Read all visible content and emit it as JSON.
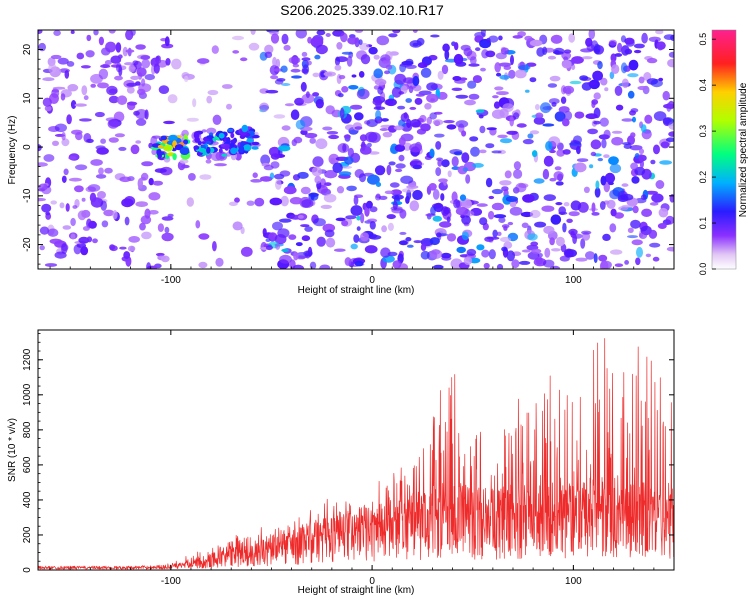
{
  "title": "S206.2025.339.02.10.R17",
  "colors": {
    "snr_line": "#ee2a2a",
    "spectrogram_low": "#e2c8f5",
    "spectrogram_mid": "#5a14ff",
    "spectrogram_high": "#ff1e1e"
  },
  "chart_data": [
    {
      "type": "heatmap",
      "name": "spectrogram",
      "xlabel": "Height of straight line (km)",
      "ylabel": "Frequency (Hz)",
      "xlim": [
        -166,
        150
      ],
      "ylim": [
        -25,
        24
      ],
      "x_ticks": [
        -100,
        0,
        100
      ],
      "x_tick_labels": [
        "-100",
        "0",
        "100"
      ],
      "y_ticks": [
        -20,
        -10,
        0,
        10,
        20
      ],
      "y_tick_labels": [
        "-20",
        "-10",
        "0",
        "10",
        "20"
      ],
      "colorbar": {
        "label": "Normalized spectral amplitude",
        "range": [
          0.0,
          0.52
        ],
        "ticks": [
          0.0,
          0.1,
          0.2,
          0.3,
          0.4,
          0.5
        ],
        "tick_labels": [
          "0.0",
          "0.1",
          "0.2",
          "0.3",
          "0.4",
          "0.5"
        ],
        "colormap": [
          "#ffffff",
          "#d9b3f2",
          "#7a1cff",
          "#1e1eff",
          "#00c8ff",
          "#00ff60",
          "#c8ff00",
          "#ffd000",
          "#ff2020",
          "#ff1e8c"
        ]
      },
      "signal_band": [
        {
          "x": -100,
          "freq_min": -2,
          "freq_max": 2,
          "amplitude": 0.45
        },
        {
          "x": -80,
          "freq_min": -2,
          "freq_max": 3,
          "amplitude": 0.3
        },
        {
          "x": -65,
          "freq_min": -1,
          "freq_max": 4,
          "amplitude": 0.25
        }
      ]
    },
    {
      "type": "line",
      "name": "snr",
      "xlabel": "Height of straight line (km)",
      "ylabel": "SNR (10 * v/v)",
      "xlim": [
        -166,
        150
      ],
      "ylim": [
        0,
        1370
      ],
      "x_ticks": [
        -100,
        0,
        100
      ],
      "x_tick_labels": [
        "-100",
        "0",
        "100"
      ],
      "y_ticks": [
        0,
        200,
        400,
        600,
        800,
        1000,
        1200
      ],
      "y_tick_labels": [
        "0",
        "200",
        "400",
        "600",
        "800",
        "1000",
        "1200"
      ],
      "series": [
        {
          "name": "SNR",
          "envelope_x": [
            -166,
            -120,
            -100,
            -90,
            -80,
            -70,
            -60,
            -50,
            -40,
            -30,
            -20,
            -10,
            0,
            10,
            20,
            30,
            40,
            50,
            60,
            70,
            80,
            90,
            100,
            110,
            120,
            130,
            140,
            150
          ],
          "envelope_max": [
            40,
            40,
            60,
            90,
            140,
            200,
            240,
            260,
            290,
            350,
            430,
            380,
            470,
            620,
            720,
            1000,
            1170,
            900,
            950,
            1000,
            1090,
            1170,
            1100,
            1280,
            1370,
            1350,
            1220,
            930
          ],
          "baseline": [
            15,
            15,
            20,
            40,
            60,
            90,
            100,
            120,
            140,
            170,
            200,
            210,
            230,
            260,
            280,
            300,
            320,
            300,
            300,
            310,
            310,
            320,
            320,
            330,
            330,
            320,
            320,
            320
          ]
        }
      ]
    }
  ]
}
